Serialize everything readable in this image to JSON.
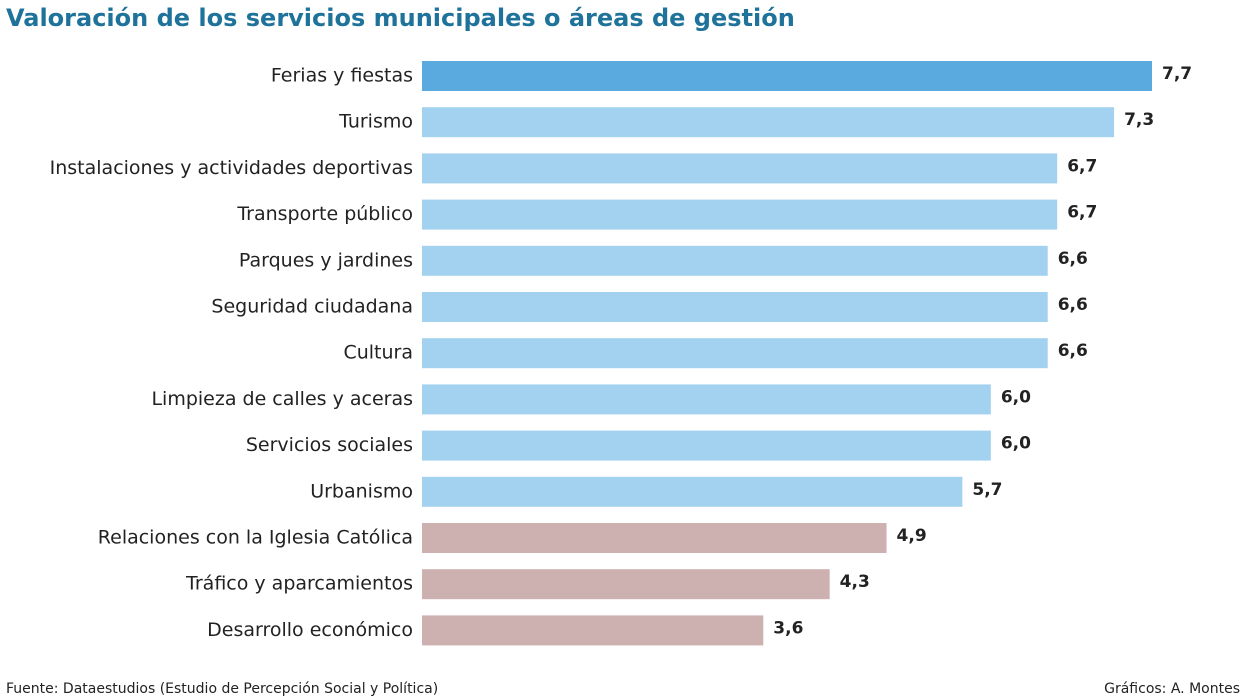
{
  "chart_data": {
    "type": "bar",
    "orientation": "horizontal",
    "title": "Valoración de los servicios municipales o áreas de gestión",
    "categories": [
      "Ferias y fiestas",
      "Turismo",
      "Instalaciones y actividades deportivas",
      "Transporte público",
      "Parques y jardines",
      "Seguridad ciudadana",
      "Cultura",
      "Limpieza de calles y aceras",
      "Servicios sociales",
      "Urbanismo",
      "Relaciones con la Iglesia Católica",
      "Tráfico y aparcamientos",
      "Desarrollo económico"
    ],
    "values": [
      7.7,
      7.3,
      6.7,
      6.7,
      6.6,
      6.6,
      6.6,
      6.0,
      6.0,
      5.7,
      4.9,
      4.3,
      3.6
    ],
    "value_labels": [
      "7,7",
      "7,3",
      "6,7",
      "6,7",
      "6,6",
      "6,6",
      "6,6",
      "6,0",
      "6,0",
      "5,7",
      "4,9",
      "4,3",
      "3,6"
    ],
    "colors": [
      "#5aaadf",
      "#a3d2f0",
      "#a3d2f0",
      "#a3d2f0",
      "#a3d2f0",
      "#a3d2f0",
      "#a3d2f0",
      "#a3d2f0",
      "#a3d2f0",
      "#a3d2f0",
      "#cdb0b0",
      "#cdb0b0",
      "#cdb0b0"
    ],
    "source": "Fuente: Dataestudios (Estudio de Percepción Social y Política)",
    "credit": "Gráficos: A. Montes"
  }
}
